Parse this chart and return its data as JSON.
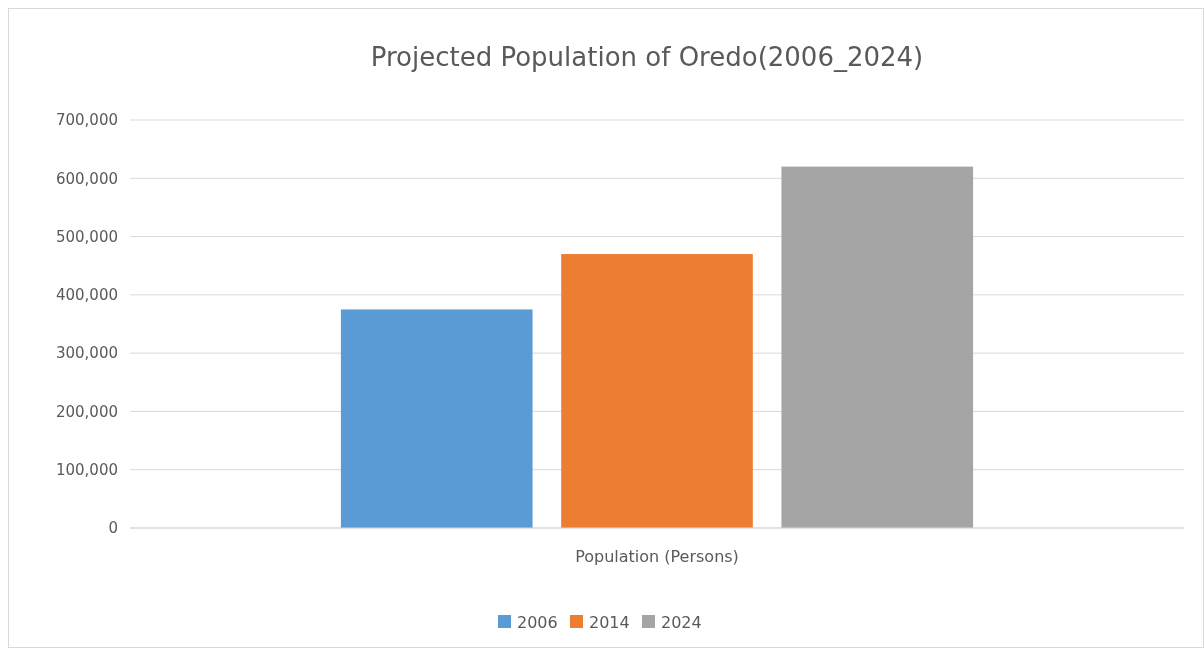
{
  "chart_data": {
    "type": "bar",
    "title": "Projected Population of Oredo(2006_2024)",
    "categories": [
      "Population (Persons)"
    ],
    "series": [
      {
        "name": "2006",
        "color": "#5b9bd5",
        "values": [
          375000
        ]
      },
      {
        "name": "2014",
        "color": "#ed7d31",
        "values": [
          470000
        ]
      },
      {
        "name": "2024",
        "color": "#a5a5a5",
        "values": [
          620000
        ]
      }
    ],
    "ylim": [
      0,
      700000
    ],
    "yticks": [
      {
        "value": 0,
        "label": "0"
      },
      {
        "value": 100000,
        "label": "100,000"
      },
      {
        "value": 200000,
        "label": "200,000"
      },
      {
        "value": 300000,
        "label": "300,000"
      },
      {
        "value": 400000,
        "label": "400,000"
      },
      {
        "value": 500000,
        "label": "500,000"
      },
      {
        "value": 600000,
        "label": "600,000"
      },
      {
        "value": 700000,
        "label": "700,000"
      }
    ],
    "grid": "y",
    "legend": "bottom"
  }
}
